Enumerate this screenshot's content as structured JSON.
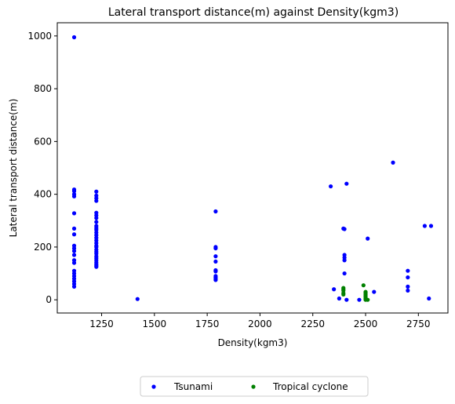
{
  "chart_data": {
    "type": "scatter",
    "title": "Lateral transport distance(m) against Density(kgm3)",
    "xlabel": "Density(kgm3)",
    "ylabel": "Lateral transport distance(m)",
    "xlim": [
      1040,
      2890
    ],
    "ylim": [
      -50,
      1050
    ],
    "xticks": [
      1250,
      1500,
      1750,
      2000,
      2250,
      2500,
      2750
    ],
    "yticks": [
      0,
      200,
      400,
      600,
      800,
      1000
    ],
    "grid": false,
    "legend_position": "bottom-center",
    "series": [
      {
        "name": "Tsunami",
        "color": "#0000ff",
        "points": [
          [
            1120,
            995
          ],
          [
            1120,
            418
          ],
          [
            1120,
            412
          ],
          [
            1120,
            400
          ],
          [
            1120,
            392
          ],
          [
            1120,
            328
          ],
          [
            1120,
            270
          ],
          [
            1120,
            248
          ],
          [
            1120,
            205
          ],
          [
            1120,
            195
          ],
          [
            1120,
            185
          ],
          [
            1120,
            170
          ],
          [
            1120,
            150
          ],
          [
            1120,
            140
          ],
          [
            1120,
            110
          ],
          [
            1120,
            100
          ],
          [
            1120,
            90
          ],
          [
            1120,
            80
          ],
          [
            1120,
            70
          ],
          [
            1120,
            60
          ],
          [
            1120,
            50
          ],
          [
            1225,
            410
          ],
          [
            1225,
            395
          ],
          [
            1225,
            385
          ],
          [
            1225,
            375
          ],
          [
            1225,
            330
          ],
          [
            1225,
            320
          ],
          [
            1225,
            310
          ],
          [
            1225,
            295
          ],
          [
            1225,
            280
          ],
          [
            1225,
            272
          ],
          [
            1225,
            265
          ],
          [
            1225,
            255
          ],
          [
            1225,
            245
          ],
          [
            1225,
            235
          ],
          [
            1225,
            225
          ],
          [
            1225,
            215
          ],
          [
            1225,
            205
          ],
          [
            1225,
            200
          ],
          [
            1225,
            190
          ],
          [
            1225,
            182
          ],
          [
            1225,
            175
          ],
          [
            1225,
            165
          ],
          [
            1225,
            158
          ],
          [
            1225,
            150
          ],
          [
            1225,
            142
          ],
          [
            1225,
            135
          ],
          [
            1225,
            130
          ],
          [
            1225,
            125
          ],
          [
            1420,
            3
          ],
          [
            1790,
            335
          ],
          [
            1790,
            200
          ],
          [
            1790,
            195
          ],
          [
            1790,
            165
          ],
          [
            1790,
            145
          ],
          [
            1790,
            112
          ],
          [
            1790,
            108
          ],
          [
            1790,
            90
          ],
          [
            1790,
            85
          ],
          [
            1790,
            80
          ],
          [
            1790,
            75
          ],
          [
            2335,
            430
          ],
          [
            2350,
            40
          ],
          [
            2375,
            5
          ],
          [
            2395,
            270
          ],
          [
            2400,
            268
          ],
          [
            2400,
            170
          ],
          [
            2400,
            160
          ],
          [
            2400,
            150
          ],
          [
            2400,
            100
          ],
          [
            2410,
            440
          ],
          [
            2410,
            0
          ],
          [
            2470,
            0
          ],
          [
            2510,
            232
          ],
          [
            2540,
            30
          ],
          [
            2630,
            520
          ],
          [
            2700,
            110
          ],
          [
            2700,
            85
          ],
          [
            2700,
            50
          ],
          [
            2700,
            35
          ],
          [
            2780,
            280
          ],
          [
            2800,
            5
          ],
          [
            2810,
            280
          ]
        ]
      },
      {
        "name": "Tropical cyclone",
        "color": "#008000",
        "points": [
          [
            2395,
            45
          ],
          [
            2395,
            40
          ],
          [
            2395,
            35
          ],
          [
            2395,
            25
          ],
          [
            2395,
            20
          ],
          [
            2490,
            55
          ],
          [
            2500,
            30
          ],
          [
            2500,
            25
          ],
          [
            2500,
            20
          ],
          [
            2500,
            15
          ],
          [
            2500,
            10
          ],
          [
            2500,
            5
          ],
          [
            2500,
            0
          ],
          [
            2510,
            0
          ]
        ]
      }
    ]
  }
}
